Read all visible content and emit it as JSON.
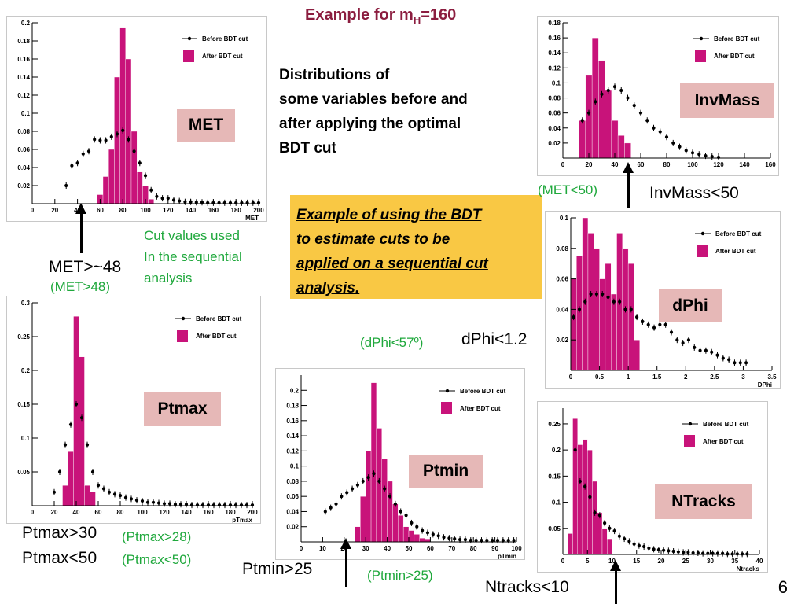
{
  "slide": {
    "title_prefix": "Example for m",
    "title_sub": "H",
    "title_suffix": "=160",
    "description": "Distributions of\nsome variables before and\nafter applying the optimal\nBDT cut",
    "callout_lines": [
      "Example of using  the BDT",
      "to estimate cuts to be",
      "applied on a sequential cut",
      "analysis."
    ],
    "cut_values_note": "Cut values used\nIn the sequential\nanalysis",
    "page_number": "6"
  },
  "labels": {
    "met_cut": "MET>~48",
    "met_cut_green": "(MET>48)",
    "invmass_cut": "InvMass<50",
    "invmass_cut_green": "(MET<50)",
    "dphi_cut": "dPhi<1.2",
    "dphi_cut_green": "(dPhi<57º)",
    "ptmax_cut1": "Ptmax>30",
    "ptmax_cut2": "Ptmax<50",
    "ptmax_green1": "(Ptmax>28)",
    "ptmax_green2": "(Ptmax<50)",
    "ptmin_cut": "Ptmin>25",
    "ptmin_green": "(Ptmin>25)",
    "ntracks_cut": "Ntracks<10"
  },
  "colors": {
    "hist_fill": "#c8137a",
    "marker": "#000000",
    "tag_bg": "#e6b8b7",
    "callout_bg": "#f9c844",
    "green": "#1fa83c",
    "title": "#8b1d3f"
  },
  "chart_data": [
    {
      "id": "met",
      "type": "bar",
      "tag": "MET",
      "xlabel": "MET",
      "xlim": [
        0,
        200
      ],
      "ylim": [
        0,
        0.2
      ],
      "xticks": [
        0,
        20,
        40,
        60,
        80,
        100,
        120,
        140,
        160,
        180,
        200
      ],
      "yticks": [
        0.02,
        0.04,
        0.06,
        0.08,
        0.1,
        0.12,
        0.14,
        0.16,
        0.18,
        0.2
      ],
      "legend": [
        "Before BDT cut",
        "After BDT cut"
      ],
      "series": [
        {
          "name": "After BDT cut",
          "type": "hist",
          "bin_width": 5,
          "x": [
            60,
            65,
            70,
            75,
            80,
            85,
            90,
            95,
            100,
            105
          ],
          "values": [
            0.01,
            0.03,
            0.06,
            0.14,
            0.195,
            0.16,
            0.08,
            0.035,
            0.02,
            0.005
          ]
        },
        {
          "name": "Before BDT cut",
          "type": "markers",
          "x": [
            30,
            35,
            40,
            45,
            50,
            55,
            60,
            65,
            70,
            75,
            80,
            85,
            90,
            95,
            100,
            105,
            110,
            115,
            120,
            125,
            130,
            135,
            140,
            145,
            150,
            155,
            160,
            165,
            170,
            175,
            180,
            185,
            190,
            195,
            200
          ],
          "values": [
            0.02,
            0.042,
            0.045,
            0.055,
            0.058,
            0.071,
            0.07,
            0.07,
            0.074,
            0.077,
            0.081,
            0.071,
            0.058,
            0.045,
            0.031,
            0.015,
            0.008,
            0.006,
            0.006,
            0.004,
            0.003,
            0.002,
            0.002,
            0.0015,
            0.0015,
            0.001,
            0.001,
            0.001,
            0.001,
            0.001,
            0.001,
            0.001,
            0.001,
            0.001,
            0.001
          ]
        }
      ]
    },
    {
      "id": "invmass",
      "type": "bar",
      "tag": "InvMass",
      "xlabel": "",
      "xlim": [
        0,
        160
      ],
      "ylim": [
        0,
        0.18
      ],
      "xticks": [
        0,
        20,
        40,
        60,
        80,
        100,
        120,
        140,
        160
      ],
      "yticks": [
        0.02,
        0.04,
        0.06,
        0.08,
        0.1,
        0.12,
        0.14,
        0.16,
        0.18
      ],
      "legend": [
        "Before BDT cut",
        "After BDT cut"
      ],
      "series": [
        {
          "name": "After BDT cut",
          "type": "hist",
          "bin_width": 5,
          "x": [
            15,
            20,
            25,
            30,
            35,
            40,
            45,
            50
          ],
          "values": [
            0.05,
            0.11,
            0.16,
            0.13,
            0.09,
            0.05,
            0.03,
            0.02
          ]
        },
        {
          "name": "Before BDT cut",
          "type": "markers",
          "x": [
            15,
            20,
            25,
            30,
            35,
            40,
            45,
            50,
            55,
            60,
            65,
            70,
            75,
            80,
            85,
            90,
            95,
            100,
            105,
            110,
            115,
            120
          ],
          "values": [
            0.05,
            0.06,
            0.075,
            0.085,
            0.09,
            0.095,
            0.09,
            0.08,
            0.07,
            0.06,
            0.05,
            0.04,
            0.035,
            0.028,
            0.02,
            0.015,
            0.01,
            0.007,
            0.005,
            0.003,
            0.002,
            0.001
          ]
        }
      ]
    },
    {
      "id": "dphi",
      "type": "bar",
      "tag": "dPhi",
      "xlabel": "DPhi",
      "xlim": [
        0,
        3.5
      ],
      "ylim": [
        0,
        0.1
      ],
      "xticks": [
        0,
        0.5,
        1,
        1.5,
        2,
        2.5,
        3,
        3.5
      ],
      "yticks": [
        0.02,
        0.04,
        0.06,
        0.08,
        0.1
      ],
      "legend": [
        "Before BDT cut",
        "After BDT cut"
      ],
      "series": [
        {
          "name": "After BDT cut",
          "type": "hist",
          "bin_width": 0.1,
          "x": [
            0.05,
            0.15,
            0.25,
            0.35,
            0.45,
            0.55,
            0.65,
            0.75,
            0.85,
            0.95,
            1.05,
            1.15
          ],
          "values": [
            0.06,
            0.075,
            0.1,
            0.09,
            0.08,
            0.06,
            0.07,
            0.05,
            0.09,
            0.08,
            0.07,
            0.02
          ]
        },
        {
          "name": "Before BDT cut",
          "type": "markers",
          "x": [
            0.05,
            0.15,
            0.25,
            0.35,
            0.45,
            0.55,
            0.65,
            0.75,
            0.85,
            0.95,
            1.05,
            1.15,
            1.25,
            1.35,
            1.45,
            1.55,
            1.65,
            1.75,
            1.85,
            1.95,
            2.05,
            2.15,
            2.25,
            2.35,
            2.45,
            2.55,
            2.65,
            2.75,
            2.85,
            2.95,
            3.05
          ],
          "values": [
            0.035,
            0.04,
            0.045,
            0.05,
            0.05,
            0.05,
            0.048,
            0.045,
            0.045,
            0.04,
            0.04,
            0.035,
            0.032,
            0.03,
            0.028,
            0.03,
            0.03,
            0.025,
            0.02,
            0.018,
            0.02,
            0.015,
            0.013,
            0.013,
            0.012,
            0.01,
            0.008,
            0.007,
            0.005,
            0.005,
            0.005
          ]
        }
      ]
    },
    {
      "id": "ptmax",
      "type": "bar",
      "tag": "Ptmax",
      "xlabel": "pTmax",
      "xlim": [
        0,
        200
      ],
      "ylim": [
        0,
        0.3
      ],
      "xticks": [
        0,
        20,
        40,
        60,
        80,
        100,
        120,
        140,
        160,
        180,
        200
      ],
      "yticks": [
        0.05,
        0.1,
        0.15,
        0.2,
        0.25,
        0.3
      ],
      "legend": [
        "Before BDT cut",
        "After BDT cut"
      ],
      "series": [
        {
          "name": "After BDT cut",
          "type": "hist",
          "bin_width": 5,
          "x": [
            30,
            35,
            40,
            45,
            50,
            55
          ],
          "values": [
            0.03,
            0.08,
            0.28,
            0.22,
            0.03,
            0.02
          ]
        },
        {
          "name": "Before BDT cut",
          "type": "markers",
          "x": [
            20,
            25,
            30,
            35,
            40,
            45,
            50,
            55,
            60,
            65,
            70,
            75,
            80,
            85,
            90,
            95,
            100,
            105,
            110,
            115,
            120,
            125,
            130,
            135,
            140,
            145,
            150,
            155,
            160,
            165,
            170,
            175,
            180,
            185,
            190,
            195,
            200
          ],
          "values": [
            0.02,
            0.05,
            0.09,
            0.12,
            0.15,
            0.13,
            0.09,
            0.05,
            0.03,
            0.025,
            0.02,
            0.017,
            0.015,
            0.012,
            0.01,
            0.008,
            0.007,
            0.005,
            0.005,
            0.004,
            0.003,
            0.003,
            0.002,
            0.002,
            0.002,
            0.001,
            0.001,
            0.001,
            0.001,
            0.001,
            0.001,
            0.001,
            0.001,
            0.001,
            0.001,
            0.001,
            0.001
          ]
        }
      ]
    },
    {
      "id": "ptmin",
      "type": "bar",
      "tag": "Ptmin",
      "xlabel": "pTmin",
      "xlim": [
        0,
        100
      ],
      "ylim": [
        0,
        0.22
      ],
      "xticks": [
        0,
        10,
        20,
        30,
        40,
        50,
        60,
        70,
        80,
        90,
        100
      ],
      "yticks": [
        0.02,
        0.04,
        0.06,
        0.08,
        0.1,
        0.12,
        0.14,
        0.16,
        0.18,
        0.2
      ],
      "legend": [
        "Before BDT cut",
        "After BDT cut"
      ],
      "series": [
        {
          "name": "After BDT cut",
          "type": "hist",
          "bin_width": 2.5,
          "x": [
            26.25,
            28.75,
            31.25,
            33.75,
            36.25,
            38.75,
            41.25,
            43.75,
            46.25,
            48.75,
            51.25,
            53.75,
            56.25,
            58.75
          ],
          "values": [
            0.02,
            0.06,
            0.12,
            0.21,
            0.15,
            0.11,
            0.08,
            0.05,
            0.035,
            0.02,
            0.015,
            0.01,
            0.005,
            0.004
          ]
        },
        {
          "name": "Before BDT cut",
          "type": "markers",
          "x": [
            11.25,
            13.75,
            16.25,
            18.75,
            21.25,
            23.75,
            26.25,
            28.75,
            31.25,
            33.75,
            36.25,
            38.75,
            41.25,
            43.75,
            46.25,
            48.75,
            51.25,
            53.75,
            56.25,
            58.75,
            61.25,
            63.75,
            66.25,
            68.75,
            71.25,
            73.75,
            76.25,
            78.75,
            81.25,
            83.75,
            86.25,
            88.75,
            91.25,
            93.75,
            96.25,
            98.75
          ],
          "values": [
            0.04,
            0.045,
            0.05,
            0.06,
            0.065,
            0.07,
            0.075,
            0.08,
            0.085,
            0.09,
            0.08,
            0.07,
            0.06,
            0.05,
            0.04,
            0.035,
            0.025,
            0.02,
            0.015,
            0.012,
            0.01,
            0.008,
            0.006,
            0.005,
            0.004,
            0.003,
            0.003,
            0.002,
            0.002,
            0.002,
            0.002,
            0.002,
            0.002,
            0.002,
            0.002,
            0.002
          ]
        }
      ]
    },
    {
      "id": "ntracks",
      "type": "bar",
      "tag": "NTracks",
      "xlabel": "Ntracks",
      "xlim": [
        0,
        40
      ],
      "ylim": [
        0,
        0.28
      ],
      "xticks": [
        0,
        5,
        10,
        15,
        20,
        25,
        30,
        35,
        40
      ],
      "yticks": [
        0.05,
        0.1,
        0.15,
        0.2,
        0.25
      ],
      "legend": [
        "Before BDT cut",
        "After BDT cut"
      ],
      "series": [
        {
          "name": "After BDT cut",
          "type": "hist",
          "bin_width": 1,
          "x": [
            1.5,
            2.5,
            3.5,
            4.5,
            5.5,
            6.5,
            7.5,
            8.5,
            9.5
          ],
          "values": [
            0.04,
            0.26,
            0.21,
            0.22,
            0.2,
            0.14,
            0.08,
            0.05,
            0.03
          ]
        },
        {
          "name": "Before BDT cut",
          "type": "markers",
          "x": [
            2.5,
            3.5,
            4.5,
            5.5,
            6.5,
            7.5,
            8.5,
            9.5,
            10.5,
            11.5,
            12.5,
            13.5,
            14.5,
            15.5,
            16.5,
            17.5,
            18.5,
            19.5,
            20.5,
            21.5,
            22.5,
            23.5,
            24.5,
            25.5,
            26.5,
            27.5,
            28.5,
            29.5,
            30.5,
            31.5,
            32.5,
            33.5,
            34.5,
            35.5,
            36.5,
            37.5
          ],
          "values": [
            0.2,
            0.14,
            0.13,
            0.11,
            0.08,
            0.075,
            0.06,
            0.05,
            0.045,
            0.035,
            0.03,
            0.025,
            0.02,
            0.017,
            0.015,
            0.012,
            0.01,
            0.009,
            0.008,
            0.007,
            0.006,
            0.005,
            0.004,
            0.004,
            0.003,
            0.003,
            0.002,
            0.002,
            0.002,
            0.002,
            0.002,
            0.001,
            0.001,
            0.001,
            0.001,
            0.001
          ]
        }
      ]
    }
  ]
}
